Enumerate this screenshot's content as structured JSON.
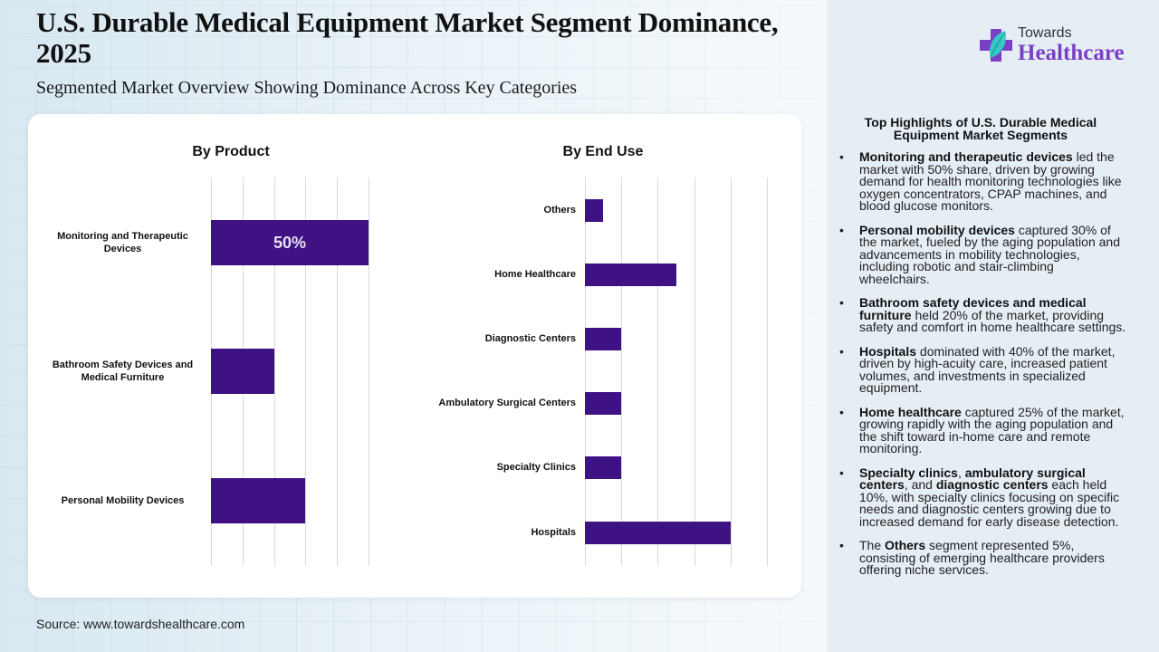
{
  "header": {
    "title": "U.S. Durable Medical Equipment Market Segment Dominance, 2025",
    "subtitle": "Segmented Market Overview Showing Dominance Across Key Categories"
  },
  "logo": {
    "line1": "Towards",
    "line2": "Healthcare",
    "icon": "medical-cross-leaf-icon",
    "colors": {
      "cross": "#7a3fc6",
      "leaf": "#2fd1c4"
    }
  },
  "colors": {
    "bar": "#3e1283",
    "bar_label": "#e8e0f6",
    "grid": "#d9d9d9"
  },
  "chart_data": [
    {
      "type": "bar",
      "orientation": "horizontal",
      "title": "By Product",
      "categories": [
        "Monitoring and Therapeutic Devices",
        "Bathroom Safety Devices and Medical Furniture",
        "Personal Mobility Devices"
      ],
      "values": [
        50,
        20,
        30
      ],
      "unit": "%",
      "data_labels": [
        "50%",
        "",
        ""
      ],
      "xlim": [
        0,
        50
      ],
      "grid": true,
      "xlabel": "",
      "ylabel": ""
    },
    {
      "type": "bar",
      "orientation": "horizontal",
      "title": "By End Use",
      "categories": [
        "Others",
        "Home Healthcare",
        "Diagnostic Centers",
        "Ambulatory Surgical Centers",
        "Specialty Clinics",
        "Hospitals"
      ],
      "values": [
        5,
        25,
        10,
        10,
        10,
        40
      ],
      "unit": "%",
      "xlim": [
        0,
        50
      ],
      "grid": true,
      "xlabel": "",
      "ylabel": ""
    }
  ],
  "highlights": {
    "title": "Top Highlights of U.S. Durable Medical Equipment Market Segments",
    "items": [
      [
        {
          "b": "Monitoring and therapeutic devices"
        },
        {
          "t": " led the market with 50% share, driven by growing demand for health monitoring technologies like oxygen concentrators, CPAP machines, and blood glucose monitors."
        }
      ],
      [
        {
          "b": "Personal mobility devices"
        },
        {
          "t": " captured 30% of the market, fueled by the aging population and advancements in mobility technologies, including robotic and stair-climbing wheelchairs."
        }
      ],
      [
        {
          "b": "Bathroom safety devices and medical furniture"
        },
        {
          "t": " held 20% of the market, providing safety and comfort in home healthcare settings."
        }
      ],
      [
        {
          "b": "Hospitals"
        },
        {
          "t": " dominated with 40% of the market, driven by high-acuity care, increased patient volumes, and investments in specialized equipment."
        }
      ],
      [
        {
          "b": "Home healthcare"
        },
        {
          "t": " captured 25% of the market, growing rapidly with the aging population and the shift toward in-home care and remote monitoring."
        }
      ],
      [
        {
          "b": "Specialty clinics"
        },
        {
          "t": ", "
        },
        {
          "b": "ambulatory surgical centers"
        },
        {
          "t": ", and "
        },
        {
          "b": "diagnostic centers"
        },
        {
          "t": " each held 10%, with specialty clinics focusing on specific needs and diagnostic centers growing due to increased demand for early disease detection."
        }
      ],
      [
        {
          "t": "The "
        },
        {
          "b": "Others"
        },
        {
          "t": " segment represented 5%, consisting of emerging healthcare providers offering niche services."
        }
      ]
    ]
  },
  "footer": {
    "source": "Source: www.towardshealthcare.com"
  }
}
